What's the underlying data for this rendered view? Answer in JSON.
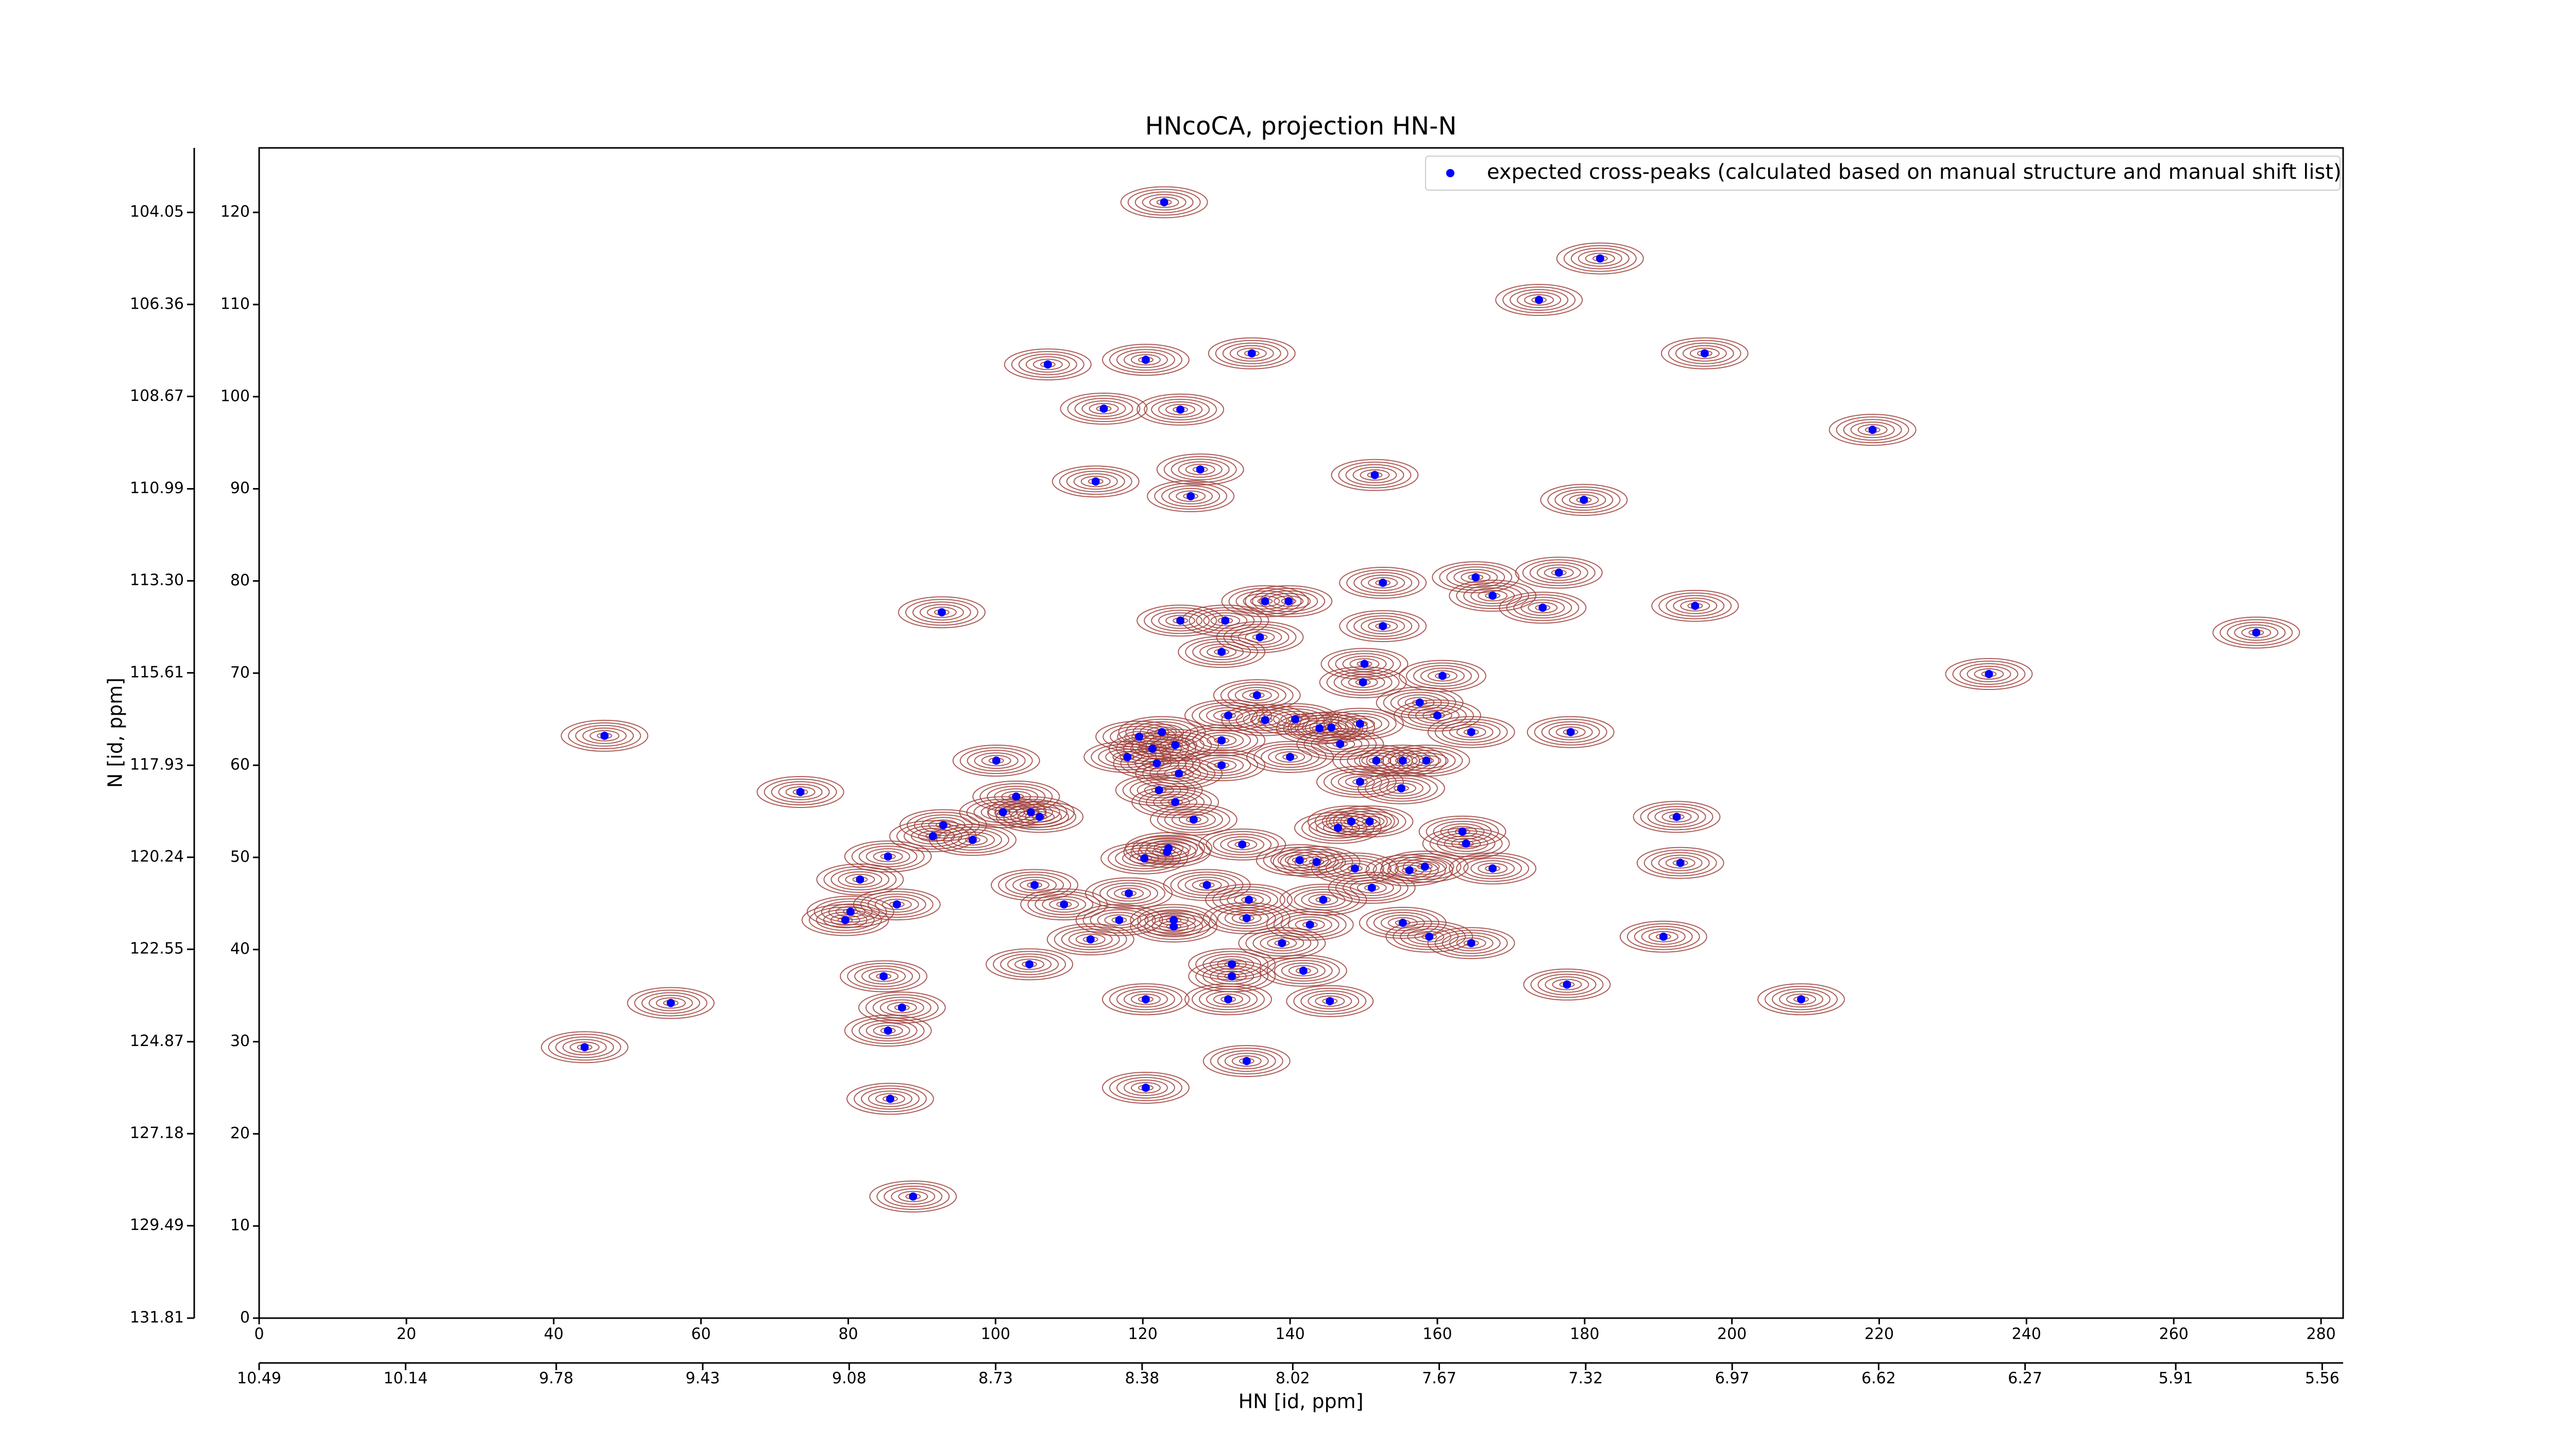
{
  "chart_data": {
    "type": "scatter",
    "title": "HNcoCA, projection HN-N",
    "xlabel": "HN [id, ppm]",
    "ylabel": "N [id, ppm]",
    "xlim": [
      0,
      283
    ],
    "xticks": [
      0,
      20,
      40,
      60,
      80,
      100,
      120,
      140,
      160,
      180,
      200,
      220,
      240,
      260,
      280
    ],
    "ylim": [
      0,
      127
    ],
    "yticks": [
      0,
      10,
      20,
      30,
      40,
      50,
      60,
      70,
      80,
      90,
      100,
      110,
      120
    ],
    "x2lim": [
      10.49,
      5.51
    ],
    "x2ticks": [
      10.49,
      10.14,
      9.78,
      9.43,
      9.08,
      8.73,
      8.38,
      8.02,
      7.67,
      7.32,
      6.97,
      6.62,
      6.27,
      5.91,
      5.56
    ],
    "y2lim": [
      131.81,
      102.43
    ],
    "y2ticks": [
      131.81,
      129.49,
      127.18,
      124.87,
      122.55,
      120.24,
      117.93,
      115.61,
      {
        "value": 113.3,
        "label": "113.30"
      },
      110.99,
      108.67,
      106.36,
      104.05
    ],
    "legend": "upper right",
    "contour_color": "#a0413c",
    "x": [
      122.9,
      182.1,
      173.8,
      107.1,
      120.4,
      134.8,
      196.3,
      114.7,
      125.1,
      219.1,
      127.8,
      113.6,
      151.5,
      126.5,
      179.9,
      165.2,
      176.5,
      136.6,
      139.8,
      167.5,
      152.6,
      92.7,
      195.0,
      174.3,
      125.1,
      131.2,
      152.6,
      271.2,
      135.9,
      130.7,
      150.1,
      234.9,
      160.7,
      149.9,
      135.5,
      157.6,
      131.6,
      136.6,
      140.7,
      160.0,
      46.9,
      119.5,
      122.6,
      144.0,
      145.6,
      149.5,
      164.6,
      178.1,
      121.3,
      124.4,
      130.7,
      146.8,
      117.9,
      100.1,
      121.9,
      130.7,
      140.0,
      155.3,
      158.5,
      151.7,
      124.9,
      124.4,
      73.5,
      102.8,
      155.1,
      149.5,
      122.2,
      101.0,
      104.8,
      106.0,
      192.5,
      126.9,
      148.3,
      150.8,
      146.5,
      92.9,
      163.4,
      91.5,
      96.9,
      163.9,
      133.5,
      123.3,
      123.5,
      85.4,
      120.2,
      193.0,
      141.3,
      143.6,
      167.5,
      148.8,
      156.2,
      158.3,
      81.6,
      105.3,
      151.1,
      118.1,
      128.7,
      86.6,
      80.3,
      109.3,
      134.4,
      144.5,
      134.1,
      116.8,
      124.2,
      124.2,
      79.6,
      142.7,
      155.3,
      190.7,
      158.9,
      112.9,
      164.6,
      138.9,
      104.6,
      132.1,
      132.1,
      141.8,
      84.8,
      177.6,
      55.9,
      120.4,
      131.6,
      145.4,
      209.4,
      87.3,
      85.4,
      44.2,
      134.1,
      120.4,
      85.7,
      88.8
    ],
    "series": [
      {
        "name": "expected cross-peaks (calculated based on manual structure and manual shift list)",
        "color": "#0000ff",
        "values": [
          121.1,
          115.0,
          110.5,
          103.5,
          104.0,
          104.7,
          104.7,
          98.7,
          98.6,
          96.4,
          92.1,
          90.8,
          91.5,
          89.2,
          88.8,
          80.4,
          80.9,
          77.8,
          77.8,
          78.4,
          79.8,
          76.6,
          77.3,
          77.1,
          75.7,
          75.7,
          75.1,
          74.4,
          73.9,
          72.3,
          71.0,
          69.9,
          69.7,
          69.0,
          67.6,
          66.8,
          65.4,
          64.9,
          65.0,
          65.4,
          63.2,
          63.1,
          63.6,
          64.0,
          64.1,
          64.5,
          63.6,
          63.6,
          61.8,
          62.2,
          62.7,
          62.3,
          60.9,
          60.5,
          60.2,
          60.0,
          60.9,
          60.5,
          60.5,
          60.5,
          59.1,
          56.0,
          57.1,
          56.6,
          57.5,
          58.2,
          57.3,
          54.9,
          54.9,
          54.4,
          54.4,
          54.1,
          53.9,
          53.9,
          53.2,
          53.5,
          52.8,
          52.3,
          51.9,
          51.5,
          51.4,
          50.6,
          51.0,
          50.1,
          49.9,
          49.4,
          49.7,
          49.5,
          48.8,
          48.8,
          48.6,
          49.0,
          47.6,
          47.0,
          46.7,
          46.1,
          47.0,
          44.9,
          44.1,
          44.9,
          45.4,
          45.4,
          43.4,
          43.2,
          43.2,
          42.5,
          43.2,
          42.7,
          42.9,
          41.4,
          41.4,
          41.1,
          40.7,
          40.7,
          38.4,
          38.4,
          37.1,
          37.7,
          37.1,
          36.2,
          34.2,
          34.6,
          34.6,
          34.4,
          34.6,
          33.7,
          31.2,
          29.4,
          27.9,
          25.0,
          23.8,
          13.2
        ]
      }
    ]
  }
}
